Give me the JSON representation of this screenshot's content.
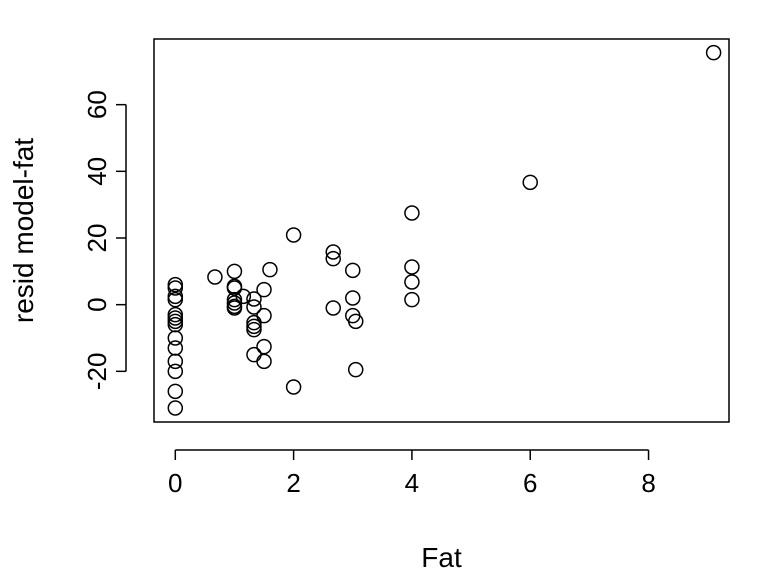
{
  "chart_data": {
    "type": "scatter",
    "xlabel": "Fat",
    "ylabel": "resid model-fat",
    "xlim": [
      -0.36,
      9.36
    ],
    "ylim": [
      -35.2,
      79.7
    ],
    "x_ticks": [
      0,
      2,
      4,
      6,
      8
    ],
    "y_ticks": [
      -20,
      0,
      20,
      40,
      60
    ],
    "x_tick_labels": [
      "0",
      "2",
      "4",
      "6",
      "8"
    ],
    "y_tick_labels": [
      "-20",
      "0",
      "20",
      "40",
      "60"
    ],
    "grid": false,
    "marker": "open-circle",
    "points": [
      {
        "x": 0,
        "y": 6
      },
      {
        "x": 0,
        "y": 5
      },
      {
        "x": 0,
        "y": 2.5
      },
      {
        "x": 0,
        "y": 1.5
      },
      {
        "x": 0,
        "y": -3
      },
      {
        "x": 0,
        "y": -4
      },
      {
        "x": 0,
        "y": -5
      },
      {
        "x": 0,
        "y": -6
      },
      {
        "x": 0,
        "y": -10
      },
      {
        "x": 0,
        "y": -13
      },
      {
        "x": 0,
        "y": -17
      },
      {
        "x": 0,
        "y": -20
      },
      {
        "x": 0,
        "y": -26
      },
      {
        "x": 0,
        "y": -31
      },
      {
        "x": 0.67,
        "y": 8.3
      },
      {
        "x": 1,
        "y": 10
      },
      {
        "x": 1,
        "y": 5.5
      },
      {
        "x": 1,
        "y": 5
      },
      {
        "x": 1,
        "y": 1.5
      },
      {
        "x": 1,
        "y": 0.5
      },
      {
        "x": 1,
        "y": -0.5
      },
      {
        "x": 1,
        "y": -1
      },
      {
        "x": 1.15,
        "y": 2.5
      },
      {
        "x": 1.33,
        "y": 1.7
      },
      {
        "x": 1.33,
        "y": -0.7
      },
      {
        "x": 1.33,
        "y": -5.4
      },
      {
        "x": 1.33,
        "y": -6.5
      },
      {
        "x": 1.33,
        "y": -7.5
      },
      {
        "x": 1.33,
        "y": -15
      },
      {
        "x": 1.5,
        "y": 4.5
      },
      {
        "x": 1.5,
        "y": -3.3
      },
      {
        "x": 1.5,
        "y": -12.6
      },
      {
        "x": 1.5,
        "y": -17
      },
      {
        "x": 1.6,
        "y": 10.5
      },
      {
        "x": 2,
        "y": 20.9
      },
      {
        "x": 2,
        "y": -24.7
      },
      {
        "x": 2.67,
        "y": 15.8
      },
      {
        "x": 2.67,
        "y": 13.8
      },
      {
        "x": 2.67,
        "y": -1
      },
      {
        "x": 3,
        "y": 10.3
      },
      {
        "x": 3,
        "y": 2
      },
      {
        "x": 3,
        "y": -3.3
      },
      {
        "x": 3.05,
        "y": -5
      },
      {
        "x": 3.05,
        "y": -19.5
      },
      {
        "x": 4,
        "y": 27.5
      },
      {
        "x": 4,
        "y": 11.3
      },
      {
        "x": 4,
        "y": 6.8
      },
      {
        "x": 4,
        "y": 1.5
      },
      {
        "x": 6,
        "y": 36.7
      },
      {
        "x": 9.1,
        "y": 75.6
      }
    ]
  }
}
